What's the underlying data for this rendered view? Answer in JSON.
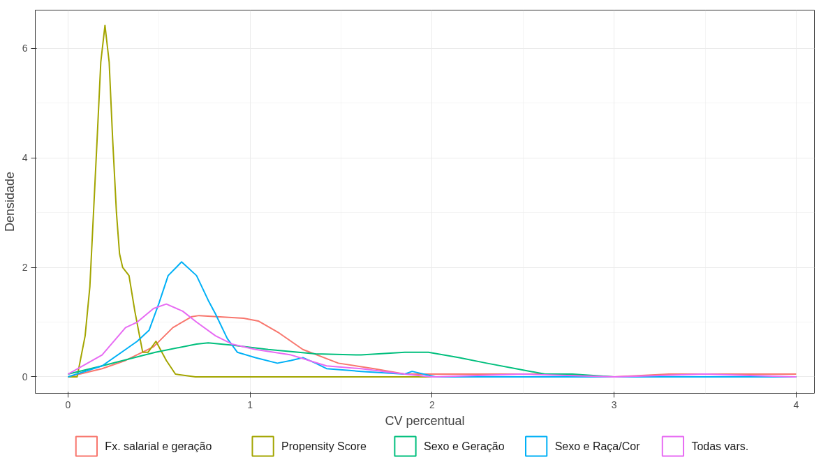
{
  "chart_data": {
    "type": "line",
    "xlabel": "CV percentual",
    "ylabel": "Densidade",
    "xlim": [
      -0.18,
      4.1
    ],
    "ylim": [
      -0.3,
      6.7
    ],
    "xticks": [
      0,
      1,
      2,
      3,
      4
    ],
    "yticks": [
      0,
      2,
      4,
      6
    ],
    "grid": true,
    "legend": "bottom",
    "series": [
      {
        "name": "Fx. salarial e geração",
        "color": "#f8766d",
        "x": [
          0,
          0.187,
          0.316,
          0.47,
          0.576,
          0.68,
          0.72,
          0.965,
          1.045,
          1.16,
          1.29,
          1.485,
          1.68,
          1.85,
          2.0,
          2.2,
          2.6,
          3.0,
          3.3,
          3.5,
          3.8,
          4.0
        ],
        "values": [
          0,
          0.15,
          0.3,
          0.55,
          0.9,
          1.1,
          1.12,
          1.07,
          1.02,
          0.8,
          0.5,
          0.25,
          0.15,
          0.05,
          0.05,
          0.05,
          0.05,
          0,
          0.05,
          0.05,
          0.05,
          0.05
        ]
      },
      {
        "name": "Propensity Score",
        "color": "#a3a500",
        "x": [
          0,
          0.05,
          0.094,
          0.12,
          0.14,
          0.16,
          0.18,
          0.203,
          0.226,
          0.245,
          0.266,
          0.283,
          0.3,
          0.335,
          0.367,
          0.41,
          0.44,
          0.483,
          0.54,
          0.59,
          0.7,
          1.0,
          2.0,
          3.0,
          4.0
        ],
        "values": [
          0,
          0,
          0.75,
          1.65,
          3.0,
          4.35,
          5.75,
          6.42,
          5.75,
          4.35,
          3.0,
          2.25,
          2.0,
          1.85,
          1.2,
          0.45,
          0.45,
          0.65,
          0.3,
          0.05,
          0,
          0,
          0,
          0,
          0
        ]
      },
      {
        "name": "Sexo e Geração",
        "color": "#00bf7d",
        "x": [
          0,
          0.187,
          0.48,
          0.706,
          0.77,
          0.9,
          1.1,
          1.36,
          1.61,
          1.85,
          1.98,
          2.15,
          2.3,
          2.46,
          2.62,
          2.77,
          3.0,
          3.5,
          4.0
        ],
        "values": [
          0.05,
          0.2,
          0.45,
          0.6,
          0.62,
          0.58,
          0.5,
          0.42,
          0.4,
          0.45,
          0.45,
          0.35,
          0.25,
          0.15,
          0.05,
          0.05,
          0,
          0,
          0
        ]
      },
      {
        "name": "Sexo e Raça/Cor",
        "color": "#00b0f6",
        "x": [
          0,
          0.187,
          0.316,
          0.38,
          0.445,
          0.5,
          0.55,
          0.624,
          0.706,
          0.77,
          0.81,
          0.875,
          0.93,
          1.03,
          1.15,
          1.225,
          1.29,
          1.36,
          1.42,
          1.61,
          1.85,
          1.89,
          2.02,
          2.5,
          3.0,
          3.5,
          4.0
        ],
        "values": [
          0,
          0.2,
          0.5,
          0.65,
          0.85,
          1.35,
          1.85,
          2.1,
          1.85,
          1.4,
          1.15,
          0.7,
          0.45,
          0.35,
          0.25,
          0.3,
          0.35,
          0.25,
          0.15,
          0.1,
          0.05,
          0.1,
          0,
          0,
          0,
          0,
          0
        ]
      },
      {
        "name": "Todas vars.",
        "color": "#e76bf3",
        "x": [
          0,
          0.187,
          0.316,
          0.38,
          0.47,
          0.54,
          0.63,
          0.706,
          0.81,
          0.9,
          1.03,
          1.225,
          1.42,
          1.61,
          1.85,
          2.0,
          2.5,
          3.0,
          3.5,
          4.0
        ],
        "values": [
          0.05,
          0.4,
          0.9,
          1.0,
          1.25,
          1.33,
          1.2,
          1.0,
          0.75,
          0.6,
          0.5,
          0.4,
          0.2,
          0.15,
          0.05,
          0,
          0.05,
          0,
          0.05,
          0
        ]
      }
    ]
  }
}
